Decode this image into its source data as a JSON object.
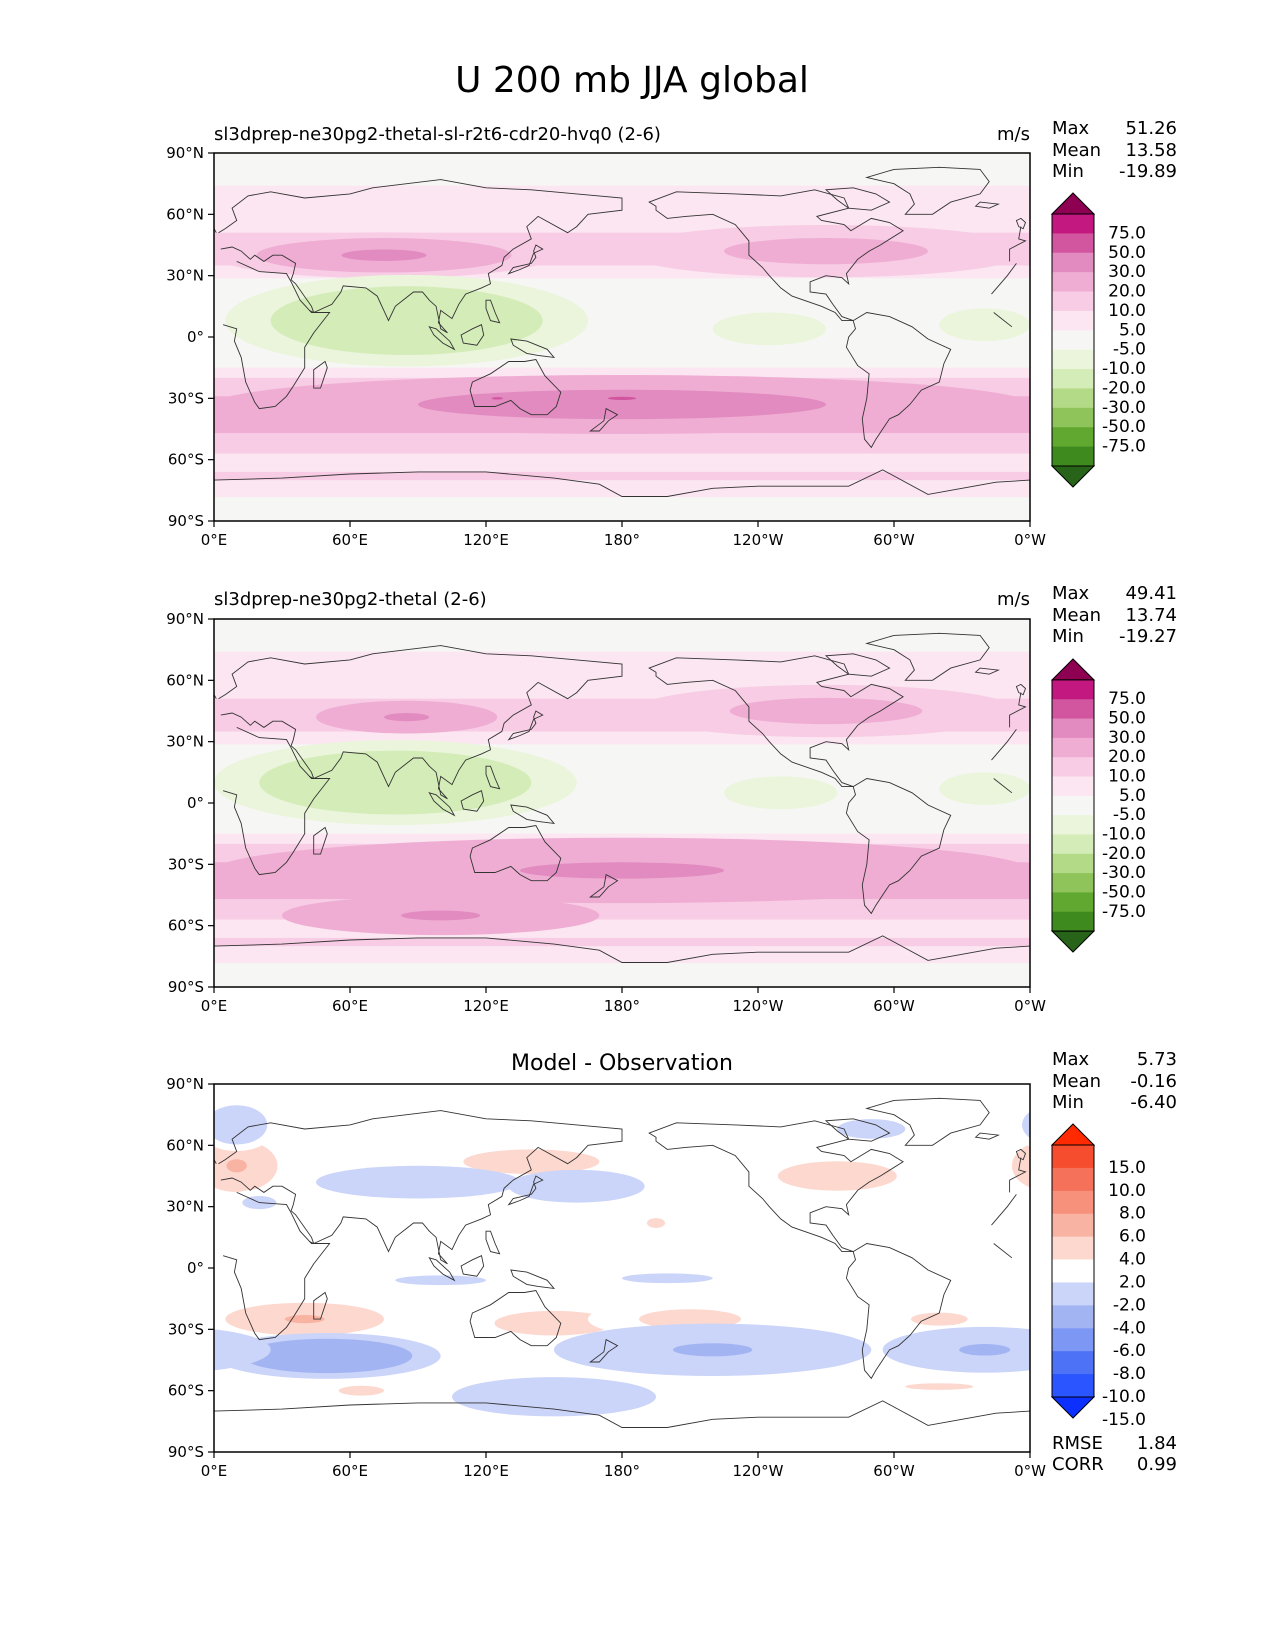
{
  "figure_title": "U 200 mb JJA global",
  "stat_labels": {
    "max": "Max",
    "mean": "Mean",
    "min": "Min",
    "rmse": "RMSE",
    "corr": "CORR"
  },
  "x_ticks": [
    "0°E",
    "60°E",
    "120°E",
    "180°",
    "120°W",
    "60°W",
    "0°W"
  ],
  "y_ticks": [
    "90°N",
    "60°N",
    "30°N",
    "0°",
    "30°S",
    "60°S",
    "90°S"
  ],
  "colors": {
    "piyg": [
      "#276419",
      "#3e8a1e",
      "#60a830",
      "#8ec45a",
      "#b3da86",
      "#d4ecb7",
      "#eaf5dc",
      "#f6f6f4",
      "#fbe6f1",
      "#f7cce4",
      "#efadd3",
      "#e28bc0",
      "#d2559f",
      "#c2187f",
      "#8e0152"
    ],
    "diff": [
      "#0b30ff",
      "#2a55ff",
      "#4d72f5",
      "#7d97f4",
      "#a3b4f3",
      "#cbd4f9",
      "#ffffff",
      "#fdd8cf",
      "#f9b3a3",
      "#f7917c",
      "#f5715a",
      "#f54d2e",
      "#ff2a00"
    ],
    "land_outline": "#333333"
  },
  "chart_data": [
    {
      "type": "heatmap",
      "title": "sl3dprep-ne30pg2-thetal-sl-r2t6-cdr20-hvq0 (2-6)",
      "units": "m/s",
      "stats": {
        "max": "51.26",
        "mean": "13.58",
        "min": "-19.89"
      },
      "colorbar_levels": [
        "75.0",
        "50.0",
        "30.0",
        "20.0",
        "10.0",
        "5.0",
        "-5.0",
        "-10.0",
        "-20.0",
        "-30.0",
        "-50.0",
        "-75.0"
      ],
      "x_range": [
        0,
        360
      ],
      "y_range": [
        -90,
        90
      ],
      "features": [
        {
          "lon": 75,
          "lat": 40,
          "rx": 75,
          "ry": 7,
          "v": 30
        },
        {
          "lon": 270,
          "lat": 42,
          "rx": 90,
          "ry": 8,
          "v": 24
        },
        {
          "lon": 85,
          "lat": 8,
          "rx": 80,
          "ry": 14,
          "v": -16
        },
        {
          "lon": 245,
          "lat": 4,
          "rx": 25,
          "ry": 5,
          "v": -10
        },
        {
          "lon": 340,
          "lat": 6,
          "rx": 20,
          "ry": 5,
          "v": -10
        },
        {
          "lon": 180,
          "lat": -33,
          "rx": 180,
          "ry": 9,
          "v": 35
        },
        {
          "lon": 180,
          "lat": -30,
          "rx": 25,
          "ry": 2,
          "v": 52
        },
        {
          "lon": 125,
          "lat": -30,
          "rx": 10,
          "ry": 1.5,
          "v": 52
        }
      ]
    },
    {
      "type": "heatmap",
      "title": "sl3dprep-ne30pg2-thetal (2-6)",
      "units": "m/s",
      "stats": {
        "max": "49.41",
        "mean": "13.74",
        "min": "-19.27"
      },
      "colorbar_levels": [
        "75.0",
        "50.0",
        "30.0",
        "20.0",
        "10.0",
        "5.0",
        "-5.0",
        "-10.0",
        "-20.0",
        "-30.0",
        "-50.0",
        "-75.0"
      ],
      "x_range": [
        0,
        360
      ],
      "y_range": [
        -90,
        90
      ],
      "features": [
        {
          "lon": 85,
          "lat": 42,
          "rx": 40,
          "ry": 5,
          "v": 33
        },
        {
          "lon": 270,
          "lat": 45,
          "rx": 85,
          "ry": 8,
          "v": 24
        },
        {
          "lon": 80,
          "lat": 10,
          "rx": 80,
          "ry": 13,
          "v": -16
        },
        {
          "lon": 250,
          "lat": 5,
          "rx": 25,
          "ry": 5,
          "v": -10
        },
        {
          "lon": 340,
          "lat": 7,
          "rx": 20,
          "ry": 5,
          "v": -10
        },
        {
          "lon": 180,
          "lat": -33,
          "rx": 180,
          "ry": 10,
          "v": 34
        },
        {
          "lon": 100,
          "lat": -55,
          "rx": 70,
          "ry": 6,
          "v": 33
        }
      ]
    },
    {
      "type": "heatmap",
      "title": "Model - Observation",
      "units": "",
      "stats": {
        "max": "5.73",
        "mean": "-0.16",
        "min": "-6.40",
        "rmse": "1.84",
        "corr": "0.99"
      },
      "colorbar_levels": [
        "15.0",
        "10.0",
        "8.0",
        "6.0",
        "4.0",
        "2.0",
        "-2.0",
        "-4.0",
        "-6.0",
        "-8.0",
        "-10.0",
        "-15.0"
      ],
      "x_range": [
        0,
        360
      ],
      "y_range": [
        -90,
        90
      ],
      "features": [
        {
          "lon": 10,
          "lat": 50,
          "rx": 18,
          "ry": 8,
          "v": 4
        },
        {
          "lon": 140,
          "lat": 52,
          "rx": 40,
          "ry": 5,
          "v": 3
        },
        {
          "lon": 275,
          "lat": 45,
          "rx": 35,
          "ry": 6,
          "v": 3
        },
        {
          "lon": 10,
          "lat": 70,
          "rx": 18,
          "ry": 8,
          "v": -3
        },
        {
          "lon": 90,
          "lat": 42,
          "rx": 45,
          "ry": 5,
          "v": -3.5
        },
        {
          "lon": 160,
          "lat": 40,
          "rx": 30,
          "ry": 5,
          "v": -3.5
        },
        {
          "lon": 290,
          "lat": 68,
          "rx": 30,
          "ry": 6,
          "v": -2.5
        },
        {
          "lon": 20,
          "lat": 32,
          "rx": 15,
          "ry": 4,
          "v": -2.5
        },
        {
          "lon": 40,
          "lat": -25,
          "rx": 35,
          "ry": 5,
          "v": 4
        },
        {
          "lon": 150,
          "lat": -27,
          "rx": 35,
          "ry": 5,
          "v": 3
        },
        {
          "lon": 210,
          "lat": -25,
          "rx": 45,
          "ry": 6,
          "v": 2.5
        },
        {
          "lon": 320,
          "lat": -25,
          "rx": 25,
          "ry": 4,
          "v": 2.5
        },
        {
          "lon": 50,
          "lat": -43,
          "rx": 50,
          "ry": 7,
          "v": -6
        },
        {
          "lon": 220,
          "lat": -40,
          "rx": 70,
          "ry": 8,
          "v": -4.5
        },
        {
          "lon": 340,
          "lat": -40,
          "rx": 45,
          "ry": 7,
          "v": -4.5
        },
        {
          "lon": 150,
          "lat": -63,
          "rx": 45,
          "ry": 6,
          "v": -4
        },
        {
          "lon": 100,
          "lat": -6,
          "rx": 40,
          "ry": 3,
          "v": -2.5
        },
        {
          "lon": 200,
          "lat": -5,
          "rx": 40,
          "ry": 3,
          "v": -2.5
        },
        {
          "lon": 65,
          "lat": -60,
          "rx": 20,
          "ry": 3,
          "v": 2.5
        },
        {
          "lon": 320,
          "lat": -58,
          "rx": 30,
          "ry": 2,
          "v": 2.5
        },
        {
          "lon": 195,
          "lat": 22,
          "rx": 8,
          "ry": 3,
          "v": 2.5
        }
      ]
    }
  ]
}
